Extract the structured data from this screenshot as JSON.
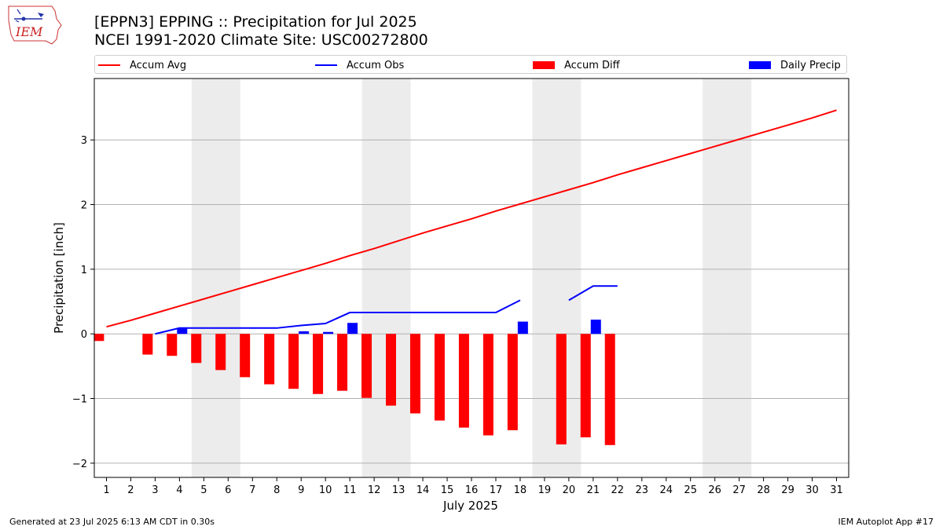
{
  "header": {
    "title_line1": "[EPPN3] EPPING :: Precipitation for Jul 2025",
    "title_line2": "NCEI 1991-2020 Climate Site: USC00272800",
    "logo_text": "IEM"
  },
  "legend": {
    "items": [
      {
        "label": "Accum Avg",
        "kind": "line",
        "color": "#ff0000"
      },
      {
        "label": "Accum Obs",
        "kind": "line",
        "color": "#0000ff"
      },
      {
        "label": "Accum Diff",
        "kind": "patch",
        "color": "#ff0000"
      },
      {
        "label": "Daily Precip",
        "kind": "patch",
        "color": "#0000ff"
      }
    ]
  },
  "footer": {
    "left": "Generated at 23 Jul 2025 6:13 AM CDT in 0.30s",
    "right": "IEM Autoplot App #17"
  },
  "chart_data": {
    "type": "bar",
    "xlabel": "July 2025",
    "ylabel": "Precipitation [inch]",
    "ylim": [
      -2.22,
      3.95
    ],
    "xlim": [
      0.5,
      31.5
    ],
    "yticks": [
      -2,
      -1,
      0,
      1,
      2,
      3
    ],
    "ytick_labels": [
      "−2",
      "−1",
      "0",
      "1",
      "2",
      "3"
    ],
    "grid": "horizontal",
    "legend_position": "top",
    "days": [
      1,
      2,
      3,
      4,
      5,
      6,
      7,
      8,
      9,
      10,
      11,
      12,
      13,
      14,
      15,
      16,
      17,
      18,
      19,
      20,
      21,
      22,
      23,
      24,
      25,
      26,
      27,
      28,
      29,
      30,
      31
    ],
    "weekend_days": [
      5,
      6,
      12,
      13,
      19,
      20,
      26,
      27
    ],
    "series": [
      {
        "name": "Accum Avg",
        "kind": "line",
        "color": "#ff0000",
        "values": [
          0.11,
          0.21,
          0.32,
          0.43,
          0.54,
          0.65,
          0.76,
          0.87,
          0.98,
          1.09,
          1.21,
          1.32,
          1.44,
          1.56,
          1.67,
          1.78,
          1.9,
          2.01,
          2.12,
          2.23,
          2.34,
          2.46,
          2.57,
          2.68,
          2.79,
          2.9,
          3.01,
          3.12,
          3.23,
          3.34,
          3.46
        ]
      },
      {
        "name": "Accum Obs",
        "kind": "line",
        "color": "#0000ff",
        "values": [
          null,
          null,
          0.0,
          0.09,
          0.09,
          0.09,
          0.09,
          0.09,
          0.13,
          0.16,
          0.33,
          0.33,
          0.33,
          0.33,
          0.33,
          0.33,
          0.33,
          0.52,
          null,
          0.52,
          0.74,
          0.74,
          null,
          null,
          null,
          null,
          null,
          null,
          null,
          null,
          null
        ]
      },
      {
        "name": "Accum Diff",
        "kind": "bar",
        "color": "#ff0000",
        "values": [
          -0.11,
          null,
          -0.32,
          -0.34,
          -0.45,
          -0.56,
          -0.67,
          -0.78,
          -0.85,
          -0.93,
          -0.88,
          -0.99,
          -1.11,
          -1.23,
          -1.34,
          -1.45,
          -1.57,
          -1.49,
          null,
          -1.71,
          -1.6,
          -1.72,
          null,
          null,
          null,
          null,
          null,
          null,
          null,
          null,
          null
        ]
      },
      {
        "name": "Daily Precip",
        "kind": "bar",
        "color": "#0000ff",
        "values": [
          null,
          null,
          null,
          0.09,
          null,
          null,
          null,
          null,
          0.04,
          0.03,
          0.17,
          null,
          null,
          null,
          null,
          null,
          null,
          0.19,
          null,
          null,
          0.22,
          null,
          null,
          null,
          null,
          null,
          null,
          null,
          null,
          null,
          null
        ]
      }
    ]
  }
}
